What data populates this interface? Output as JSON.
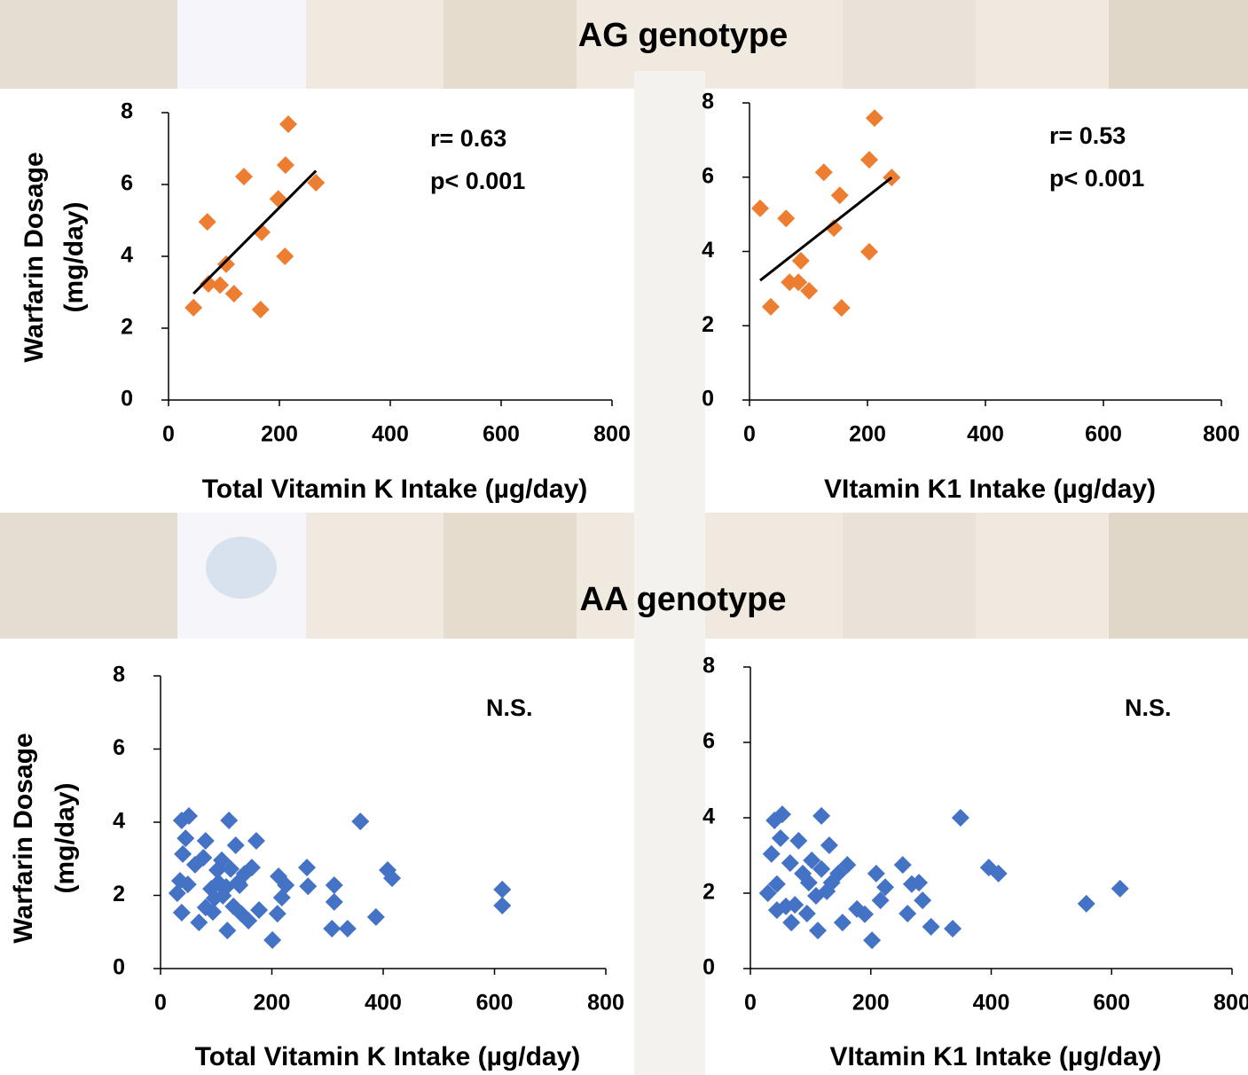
{
  "headings": [
    "AG genotype",
    "AA genotype"
  ],
  "chart_data": [
    {
      "type": "scatter",
      "ylabel": [
        "Warfarin Dosage",
        "(mg/day)"
      ],
      "xlabel": "Total Vitamin K Intake (µg/day)",
      "annotations": [
        "r= 0.63",
        "p< 0.001"
      ],
      "color": "#ed7d31",
      "line_color": "#000000",
      "x": [
        45,
        70,
        72,
        93,
        104,
        118,
        136,
        168,
        166,
        198,
        211,
        210,
        216,
        266
      ],
      "y": [
        2.57,
        4.96,
        3.23,
        3.2,
        3.78,
        2.96,
        6.22,
        4.67,
        2.52,
        5.6,
        6.54,
        4.0,
        7.68,
        6.05
      ],
      "trendline": {
        "x": [
          45,
          266
        ],
        "y": [
          2.96,
          6.38
        ]
      },
      "xlim": [
        0,
        800
      ],
      "xticks": [
        0,
        200,
        400,
        600,
        800
      ],
      "ylim": [
        0,
        8
      ],
      "yticks": [
        0,
        2,
        4,
        6,
        8
      ]
    },
    {
      "type": "scatter",
      "xlabel": "VItamin K1 Intake (µg/day)",
      "annotations": [
        "r= 0.53",
        "p< 0.001"
      ],
      "color": "#ed7d31",
      "line_color": "#000000",
      "x": [
        18,
        36,
        62,
        68,
        83,
        87,
        101,
        126,
        143,
        153,
        156,
        203,
        203,
        212,
        241
      ],
      "y": [
        5.16,
        2.51,
        4.89,
        3.17,
        3.17,
        3.75,
        2.94,
        6.13,
        4.63,
        5.51,
        2.48,
        6.47,
        3.99,
        7.59,
        5.99
      ],
      "trendline": {
        "x": [
          18,
          241
        ],
        "y": [
          3.22,
          5.99
        ]
      },
      "xlim": [
        0,
        800
      ],
      "xticks": [
        0,
        200,
        400,
        600,
        800
      ],
      "ylim": [
        0,
        8
      ],
      "yticks": [
        0,
        2,
        4,
        6,
        8
      ]
    },
    {
      "type": "scatter",
      "ylabel": [
        "Warfarin Dosage",
        "(mg/day)"
      ],
      "xlabel": "Total Vitamin K Intake (µg/day)",
      "annotations": [
        "N.S."
      ],
      "color": "#4472c4",
      "x": [
        30,
        35,
        40,
        38,
        51,
        45,
        38,
        49,
        62,
        69,
        77,
        81,
        81,
        94,
        104,
        110,
        112,
        120,
        123,
        126,
        131,
        135,
        139,
        145,
        151,
        158,
        164,
        172,
        177,
        201,
        210,
        212,
        218,
        225,
        263,
        265,
        312,
        312,
        308,
        336,
        359,
        387,
        408,
        416,
        614,
        614,
        102,
        97,
        118,
        142,
        91
      ],
      "y": [
        2.06,
        2.4,
        3.13,
        4.05,
        4.17,
        3.56,
        1.53,
        2.3,
        2.84,
        1.26,
        3.03,
        3.49,
        1.67,
        1.55,
        2.35,
        2.96,
        1.99,
        1.04,
        4.05,
        2.72,
        1.7,
        3.37,
        2.35,
        1.5,
        2.59,
        1.31,
        2.76,
        3.49,
        1.6,
        0.78,
        1.5,
        2.52,
        1.94,
        2.28,
        2.76,
        2.25,
        2.28,
        1.82,
        1.09,
        1.09,
        4.02,
        1.41,
        2.69,
        2.47,
        2.16,
        1.72,
        2.69,
        1.92,
        2.23,
        2.28,
        2.18
      ],
      "xlim": [
        0,
        800
      ],
      "xticks": [
        0,
        200,
        400,
        600,
        800
      ],
      "ylim": [
        0,
        8
      ],
      "yticks": [
        0,
        2,
        4,
        6,
        8
      ]
    },
    {
      "type": "scatter",
      "xlabel": "VItamin K1 Intake (µg/day)",
      "annotations": [
        "N.S."
      ],
      "color": "#4472c4",
      "x": [
        29,
        35,
        40,
        44,
        44,
        53,
        50,
        59,
        68,
        66,
        80,
        74,
        94,
        97,
        102,
        112,
        118,
        118,
        127,
        131,
        135,
        146,
        153,
        161,
        177,
        190,
        202,
        209,
        216,
        224,
        253,
        261,
        268,
        286,
        280,
        300,
        336,
        349,
        396,
        412,
        558,
        614,
        87,
        109
      ],
      "y": [
        2.0,
        3.04,
        3.93,
        2.24,
        1.55,
        4.09,
        3.46,
        1.65,
        1.22,
        2.8,
        3.39,
        1.69,
        1.46,
        2.28,
        2.87,
        1.01,
        4.05,
        2.64,
        2.05,
        3.27,
        2.28,
        2.52,
        1.22,
        2.75,
        1.58,
        1.44,
        0.75,
        2.52,
        1.81,
        2.16,
        2.75,
        1.46,
        2.24,
        1.81,
        2.28,
        1.11,
        1.06,
        4.0,
        2.68,
        2.52,
        1.72,
        2.12,
        2.52,
        1.93
      ],
      "xlim": [
        0,
        800
      ],
      "xticks": [
        0,
        200,
        400,
        600,
        800
      ],
      "ylim": [
        0,
        8
      ],
      "yticks": [
        0,
        2,
        4,
        6,
        8
      ]
    }
  ]
}
